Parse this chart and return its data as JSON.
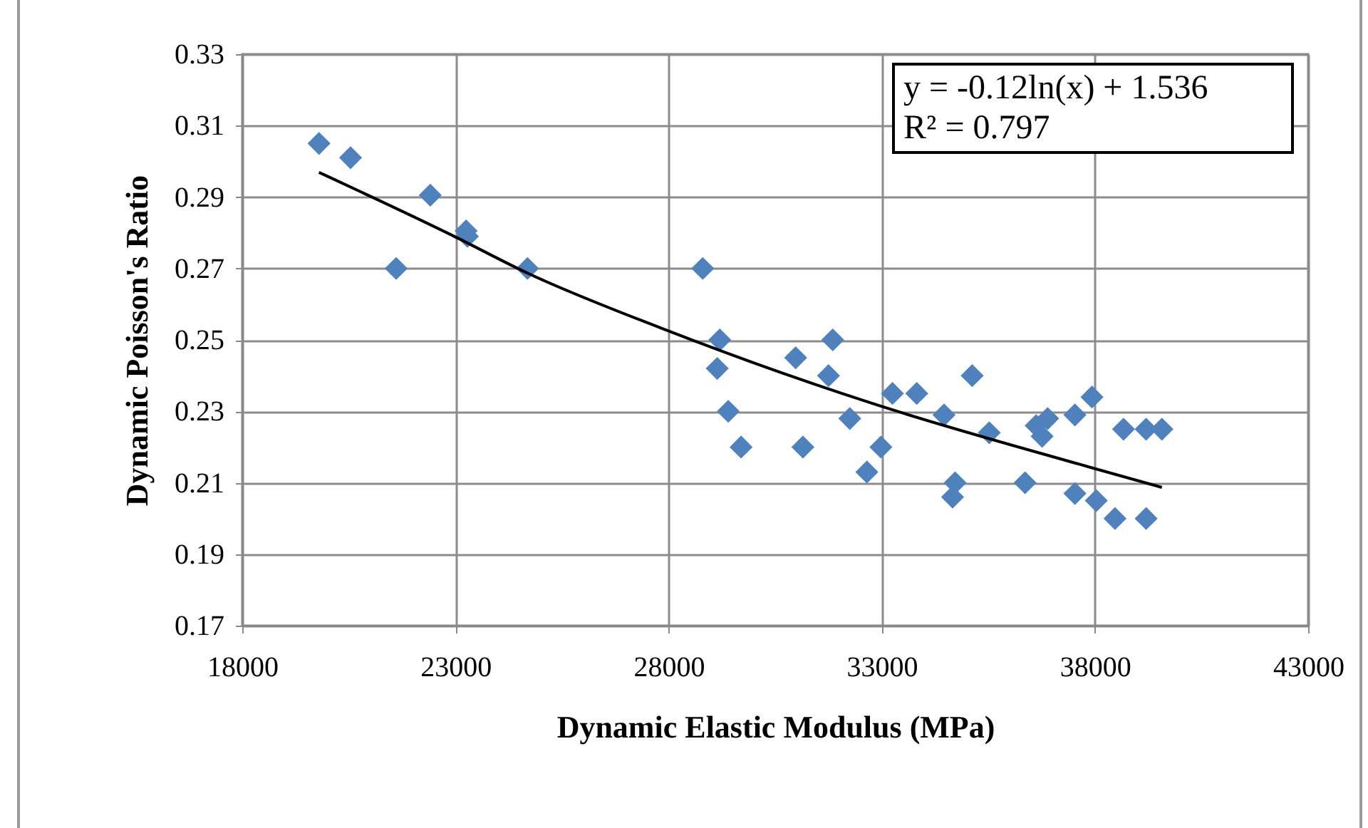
{
  "chart_data": {
    "type": "scatter",
    "xlabel": "Dynamic Elastic Modulus (MPa)",
    "ylabel": "Dynamic Poisson's Ratio",
    "annotations": [
      "y = -0.12ln(x) + 1.536",
      "R² = 0.797"
    ],
    "xlim": [
      18000,
      43000
    ],
    "xticks": [
      18000,
      23000,
      28000,
      33000,
      38000,
      43000
    ],
    "ylim": [
      0.17,
      0.33
    ],
    "yticks": [
      0.17,
      0.19,
      0.21,
      0.23,
      0.25,
      0.27,
      0.29,
      0.31,
      0.33
    ],
    "grid": true,
    "marker": "diamond",
    "series": [
      {
        "color": "#4f81bd",
        "x": [
          19800,
          20540,
          21610,
          22410,
          23250,
          23280,
          24690,
          28800,
          29200,
          29140,
          29400,
          29700,
          30980,
          31150,
          31750,
          31850,
          32250,
          32650,
          32980,
          33250,
          33820,
          34460,
          34660,
          34720,
          35120,
          35520,
          36360,
          36620,
          36760,
          36890,
          37530,
          37530,
          37930,
          38030,
          38470,
          38670,
          39200,
          39200,
          39570
        ],
        "values": [
          0.305,
          0.301,
          0.27,
          0.2905,
          0.2805,
          0.279,
          0.27,
          0.27,
          0.25,
          0.242,
          0.23,
          0.22,
          0.245,
          0.22,
          0.24,
          0.25,
          0.228,
          0.213,
          0.22,
          0.235,
          0.235,
          0.229,
          0.206,
          0.21,
          0.24,
          0.224,
          0.21,
          0.226,
          0.223,
          0.228,
          0.229,
          0.207,
          0.234,
          0.205,
          0.2,
          0.225,
          0.2,
          0.225,
          0.225
        ]
      },
      {
        "type": "line",
        "color": "#000000",
        "marker": "none",
        "x": [
          19800,
          22920,
          24690,
          27800,
          32780,
          37660,
          39570
        ],
        "values": [
          0.2969,
          0.2793,
          0.2687,
          0.2534,
          0.2322,
          0.2151,
          0.2087
        ]
      }
    ]
  }
}
